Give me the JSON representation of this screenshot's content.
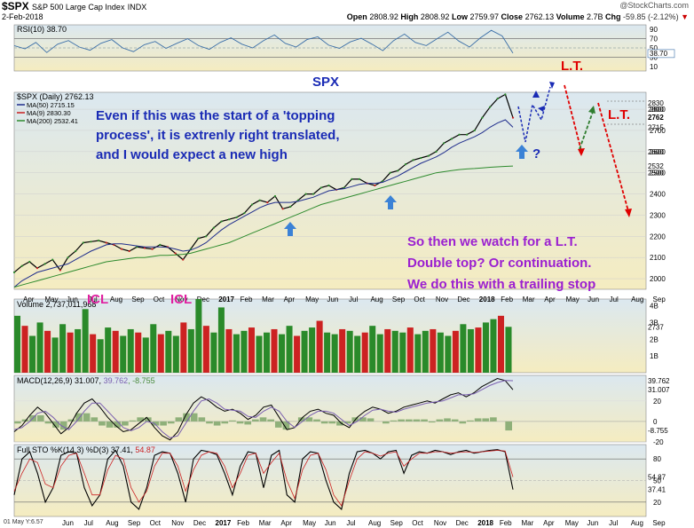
{
  "header": {
    "symbol": "$SPX",
    "name": "S&P 500 Large Cap Index",
    "exchange": "INDX",
    "date": "2-Feb-2018",
    "brand": "@StockCharts.com",
    "open_label": "Open",
    "open": "2808.92",
    "high_label": "High",
    "high": "2808.92",
    "low_label": "Low",
    "low": "2759.97",
    "close_label": "Close",
    "close": "2762.13",
    "volume_label": "Volume",
    "volume": "2.7B",
    "chg_label": "Chg",
    "chg": "-59.85 (-2.12%)"
  },
  "colors": {
    "bg_top": "#dbe8f0",
    "bg_bottom": "#f5ecc0",
    "price_line": "#000000",
    "ma50": "#1f2d8c",
    "ma9": "#c81e1e",
    "ma200": "#2e8b2e",
    "annotation_blue": "#1a2bb5",
    "annotation_purple": "#9b1fd0",
    "lt_red": "#e00000",
    "arrow_blue": "#3b82d6",
    "arrow_red": "#e00000",
    "arrow_green": "#2f7d2f",
    "icl": "#e020a0",
    "vol_up": "#2a8a2a",
    "vol_down": "#cc2222"
  },
  "annotations": {
    "spx": "SPX",
    "main_text": [
      "Even if this was the start of a 'topping",
      "process', it is extrenly right translated,",
      "and I would expect a new high"
    ],
    "question": "?",
    "lt1": "L.T.",
    "lt2": "L.T.",
    "icl1": "ICL",
    "icl2": "ICL",
    "bottom_text": [
      "So then we watch for a L.T.",
      "Double top? Or continuation.",
      "We do this with a trailing stop"
    ],
    "corner": "01 May Y:6.57"
  },
  "chart_data": [
    {
      "type": "line",
      "panel": "rsi",
      "title": "RSI(10) 38.70",
      "ylim": [
        0,
        100
      ],
      "y_ticks": [
        10,
        30,
        50,
        70,
        90
      ],
      "reference_lines": [
        30,
        50,
        70
      ],
      "last_value": 38.7,
      "value_label": "38.70",
      "series": [
        {
          "name": "RSI(10)",
          "values": [
            55,
            48,
            62,
            40,
            58,
            66,
            52,
            45,
            60,
            68,
            50,
            42,
            57,
            64,
            49,
            60,
            70,
            55,
            47,
            62,
            72,
            58,
            50,
            66,
            78,
            60,
            52,
            68,
            74,
            56,
            49,
            63,
            71,
            58,
            44,
            66,
            80,
            62,
            55,
            70,
            84,
            65,
            52,
            72,
            88,
            76,
            38.7
          ]
        }
      ]
    },
    {
      "type": "line",
      "panel": "price",
      "title": "$SPX (Daily) 2762.13",
      "ylim": [
        1950,
        2880
      ],
      "y_ticks": [
        2000,
        2100,
        2200,
        2300,
        2400,
        2500,
        2600,
        2700,
        2800,
        2900
      ],
      "x_tick_labels": [
        "Apr",
        "May",
        "Jun",
        "Jul",
        "Aug",
        "Sep",
        "Oct",
        "Nov",
        "Dec",
        "2017",
        "Feb",
        "Mar",
        "Apr",
        "May",
        "Jun",
        "Jul",
        "Aug",
        "Sep",
        "Oct",
        "Nov",
        "Dec",
        "2018",
        "Feb",
        "Mar",
        "Apr",
        "May",
        "Jun",
        "Jul",
        "Aug",
        "Sep"
      ],
      "value_labels": [
        "2830",
        "2800",
        "2762",
        "2715",
        "2600",
        "2532",
        "2500"
      ],
      "legend": [
        {
          "name": "MA(50) 2715.15",
          "color": "#1f2d8c"
        },
        {
          "name": "MA(9) 2830.30",
          "color": "#c81e1e"
        },
        {
          "name": "MA(200) 2532.41",
          "color": "#2e8b2e"
        }
      ],
      "series": [
        {
          "name": "$SPX",
          "values": [
            2030,
            2060,
            2080,
            2050,
            2070,
            2090,
            2040,
            2100,
            2130,
            2170,
            2175,
            2180,
            2170,
            2160,
            2140,
            2130,
            2150,
            2145,
            2140,
            2160,
            2150,
            2120,
            2090,
            2140,
            2190,
            2200,
            2240,
            2270,
            2280,
            2290,
            2310,
            2350,
            2370,
            2360,
            2390,
            2330,
            2340,
            2370,
            2400,
            2400,
            2430,
            2440,
            2420,
            2430,
            2470,
            2470,
            2450,
            2440,
            2460,
            2500,
            2510,
            2540,
            2560,
            2570,
            2580,
            2600,
            2640,
            2660,
            2680,
            2680,
            2700,
            2760,
            2810,
            2850,
            2870,
            2760
          ]
        },
        {
          "name": "MA(50)",
          "values": [
            1960,
            1990,
            2010,
            2030,
            2040,
            2050,
            2060,
            2070,
            2090,
            2110,
            2130,
            2145,
            2160,
            2165,
            2165,
            2160,
            2155,
            2150,
            2150,
            2150,
            2148,
            2140,
            2130,
            2135,
            2150,
            2170,
            2200,
            2230,
            2255,
            2275,
            2295,
            2315,
            2335,
            2350,
            2360,
            2360,
            2360,
            2365,
            2375,
            2385,
            2400,
            2415,
            2420,
            2425,
            2435,
            2445,
            2450,
            2450,
            2455,
            2470,
            2485,
            2505,
            2525,
            2545,
            2560,
            2575,
            2595,
            2620,
            2640,
            2655,
            2670,
            2690,
            2715,
            2735,
            2750,
            2715
          ]
        },
        {
          "name": "MA(200)",
          "values": [
            1960,
            1970,
            1980,
            1990,
            2000,
            2010,
            2020,
            2030,
            2040,
            2050,
            2060,
            2070,
            2080,
            2085,
            2090,
            2095,
            2100,
            2100,
            2105,
            2110,
            2110,
            2112,
            2115,
            2120,
            2130,
            2140,
            2150,
            2160,
            2170,
            2185,
            2200,
            2215,
            2230,
            2245,
            2260,
            2275,
            2290,
            2305,
            2320,
            2335,
            2350,
            2360,
            2370,
            2380,
            2390,
            2400,
            2410,
            2420,
            2430,
            2440,
            2450,
            2460,
            2470,
            2480,
            2490,
            2500,
            2505,
            2510,
            2515,
            2518,
            2520,
            2523,
            2526,
            2528,
            2530,
            2532
          ]
        }
      ]
    },
    {
      "type": "bar",
      "panel": "volume",
      "title": "Volume 2,737,011,968",
      "ylim": [
        0,
        4.4
      ],
      "y_ticks": [
        "1B",
        "2B",
        "3B",
        "4B"
      ],
      "last_label": "2737",
      "values": [
        3.4,
        2.8,
        2.2,
        3.0,
        2.5,
        2.1,
        2.9,
        2.4,
        2.6,
        3.8,
        2.3,
        2.0,
        2.7,
        2.5,
        2.2,
        2.6,
        2.4,
        2.1,
        2.9,
        2.3,
        2.5,
        2.2,
        3.0,
        2.6,
        4.4,
        2.8,
        2.4,
        3.9,
        2.6,
        2.3,
        2.5,
        2.7,
        2.2,
        2.4,
        2.6,
        2.3,
        2.8,
        2.2,
        2.5,
        2.7,
        3.1,
        2.4,
        2.3,
        2.6,
        2.5,
        2.2,
        2.4,
        2.8,
        2.3,
        2.6,
        2.5,
        2.4,
        2.7,
        2.3,
        2.5,
        2.6,
        2.4,
        2.2,
        2.5,
        2.9,
        2.6,
        2.7,
        3.0,
        3.2,
        3.4,
        2.74
      ]
    },
    {
      "type": "line",
      "panel": "macd",
      "title": "MACD(12,26,9) 31.007, 39.762, -8.755",
      "title_parts": [
        "MACD(12,26,9) 31.007, ",
        "39.762",
        ", -8.755"
      ],
      "ylim": [
        -20,
        45
      ],
      "y_ticks": [
        -20,
        0,
        20
      ],
      "value_labels": [
        "39.762",
        "31.007",
        "-8.755"
      ],
      "series": [
        {
          "name": "MACD",
          "values": [
            -10,
            -4,
            6,
            14,
            8,
            -2,
            -12,
            -6,
            8,
            18,
            22,
            14,
            4,
            -4,
            -10,
            -8,
            -2,
            4,
            -6,
            -14,
            -18,
            -10,
            6,
            18,
            24,
            20,
            14,
            10,
            12,
            8,
            2,
            6,
            14,
            16,
            4,
            -8,
            -6,
            4,
            10,
            12,
            8,
            6,
            -2,
            -6,
            4,
            10,
            14,
            12,
            8,
            10,
            14,
            16,
            18,
            20,
            18,
            22,
            26,
            28,
            24,
            28,
            34,
            38,
            42,
            40,
            31
          ]
        },
        {
          "name": "Signal",
          "values": [
            -8,
            -6,
            0,
            8,
            10,
            4,
            -4,
            -8,
            0,
            10,
            18,
            18,
            10,
            2,
            -6,
            -9,
            -6,
            0,
            -2,
            -10,
            -16,
            -14,
            -2,
            10,
            20,
            22,
            18,
            12,
            11,
            10,
            5,
            4,
            10,
            14,
            10,
            0,
            -6,
            0,
            6,
            10,
            10,
            8,
            2,
            -4,
            0,
            6,
            11,
            12,
            10,
            9,
            12,
            14,
            16,
            18,
            19,
            20,
            23,
            26,
            26,
            27,
            31,
            35,
            38,
            40,
            39.8
          ]
        },
        {
          "name": "Histogram",
          "values": [
            -2,
            2,
            6,
            6,
            -2,
            -6,
            -8,
            2,
            8,
            8,
            4,
            -4,
            -6,
            -6,
            -4,
            1,
            4,
            4,
            -4,
            -4,
            -2,
            4,
            8,
            8,
            4,
            -2,
            -4,
            -2,
            1,
            -2,
            -3,
            2,
            4,
            2,
            -6,
            -8,
            0,
            4,
            4,
            2,
            -2,
            -2,
            -4,
            -2,
            4,
            4,
            3,
            0,
            -2,
            1,
            2,
            2,
            2,
            2,
            -1,
            2,
            3,
            2,
            -2,
            1,
            3,
            3,
            4,
            0,
            -8.8
          ]
        }
      ]
    },
    {
      "type": "line",
      "panel": "stochastic",
      "title": "Full STO %K(14,3) %D(3) 37.41, 54.87",
      "title_parts": [
        "Full STO %K(14,3) %D(3) 37.41, ",
        "54.87"
      ],
      "ylim": [
        0,
        100
      ],
      "y_ticks": [
        20,
        50,
        80
      ],
      "reference_lines": [
        20,
        80
      ],
      "value_labels": [
        "54.87",
        "37.41"
      ],
      "x_tick_labels": [
        "Jun",
        "Jul",
        "Aug",
        "Sep",
        "Oct",
        "Nov",
        "Dec",
        "2017",
        "Feb",
        "Mar",
        "Apr",
        "May",
        "Jun",
        "Jul",
        "Aug",
        "Sep",
        "Oct",
        "Nov",
        "Dec",
        "2018",
        "Feb",
        "Mar",
        "Apr",
        "May",
        "Jun",
        "Jul",
        "Aug",
        "Sep"
      ],
      "series": [
        {
          "name": "%K",
          "values": [
            30,
            80,
            90,
            60,
            20,
            40,
            85,
            90,
            88,
            40,
            15,
            30,
            80,
            92,
            70,
            20,
            10,
            40,
            85,
            90,
            88,
            60,
            20,
            80,
            92,
            90,
            86,
            60,
            30,
            70,
            90,
            88,
            40,
            85,
            92,
            30,
            20,
            80,
            90,
            88,
            50,
            20,
            10,
            60,
            90,
            92,
            88,
            80,
            90,
            92,
            60,
            85,
            90,
            88,
            92,
            90,
            86,
            90,
            92,
            88,
            90,
            92,
            93,
            90,
            37.4
          ]
        },
        {
          "name": "%D",
          "values": [
            35,
            60,
            80,
            75,
            45,
            40,
            70,
            85,
            88,
            60,
            30,
            30,
            65,
            85,
            80,
            40,
            20,
            35,
            70,
            88,
            88,
            70,
            35,
            65,
            85,
            90,
            88,
            70,
            40,
            60,
            85,
            88,
            60,
            75,
            88,
            50,
            25,
            65,
            85,
            88,
            65,
            30,
            15,
            50,
            80,
            90,
            88,
            84,
            88,
            90,
            70,
            80,
            88,
            88,
            90,
            90,
            88,
            89,
            90,
            89,
            90,
            91,
            92,
            91,
            54.9
          ]
        }
      ]
    }
  ]
}
